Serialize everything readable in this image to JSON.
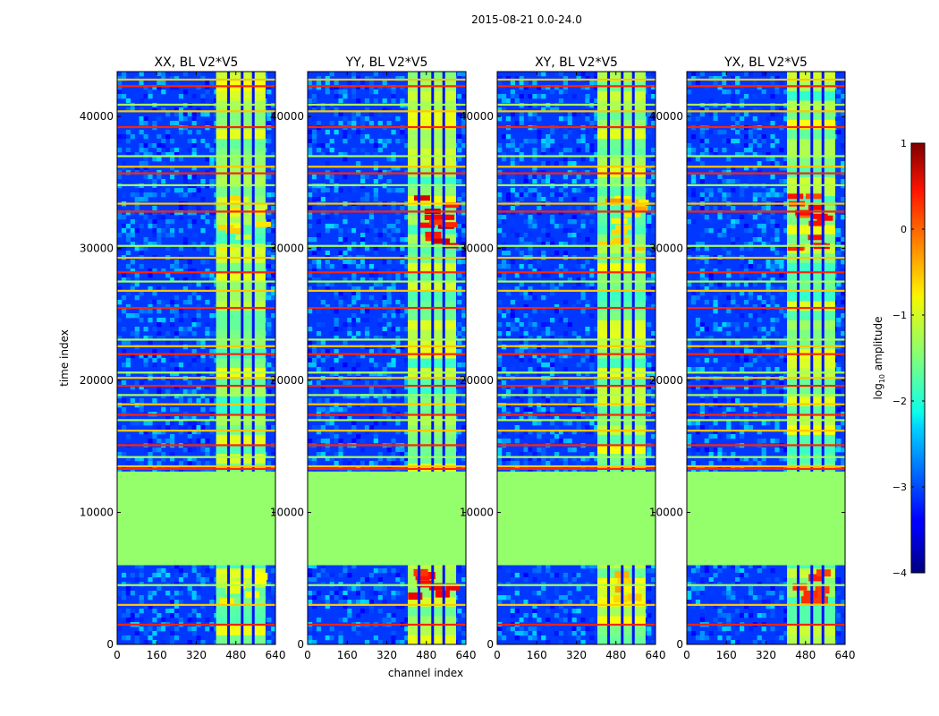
{
  "chart_data": {
    "type": "heatmap",
    "suptitle": "2015-08-21 0.0-24.0",
    "xlabel": "channel index",
    "ylabel": "time index",
    "xlim": [
      0,
      640
    ],
    "ylim": [
      0,
      43400
    ],
    "xticks": [
      0,
      160,
      320,
      480,
      640
    ],
    "yticks": [
      0,
      10000,
      20000,
      30000,
      40000
    ],
    "colorbar": {
      "label_main": "log",
      "label_sub": "10",
      "label_rest": " amplitude",
      "range": [
        -4,
        1
      ],
      "ticks": [
        1,
        0,
        -1,
        -2,
        -3,
        -4
      ],
      "tick_labels": [
        "1",
        "0",
        "−1",
        "−2",
        "−3",
        "−4"
      ],
      "colormap": "jet"
    },
    "panels": [
      {
        "title": "XX, BL V2*V5",
        "pol": "XX",
        "bright_block": [
          400,
          600
        ],
        "rfi_peak_low": -1.2
      },
      {
        "title": "YY, BL V2*V5",
        "pol": "YY",
        "bright_block": [
          405,
          600
        ],
        "rfi_peak_low": 0.1
      },
      {
        "title": "XY, BL V2*V5",
        "pol": "XY",
        "bright_block": [
          405,
          600
        ],
        "rfi_peak_low": -0.9
      },
      {
        "title": "YX, BL V2*V5",
        "pol": "YX",
        "bright_block": [
          405,
          600
        ],
        "rfi_peak_low": -0.2
      }
    ],
    "flagged_time_range": [
      6000,
      13100
    ],
    "flagged_value": -1.4,
    "dark_channel_gaps": [
      445,
      500,
      545
    ],
    "horizontal_rfi_rows": [
      1500,
      3000,
      4500,
      13300,
      13500,
      14200,
      15100,
      16200,
      17000,
      17400,
      18200,
      18900,
      19600,
      20200,
      20600,
      22000,
      22600,
      23100,
      25500,
      26800,
      27500,
      28200,
      29300,
      30200,
      32800,
      33400,
      34800,
      35700,
      36200,
      37000,
      39200,
      40400,
      40900,
      42300,
      42800
    ]
  }
}
